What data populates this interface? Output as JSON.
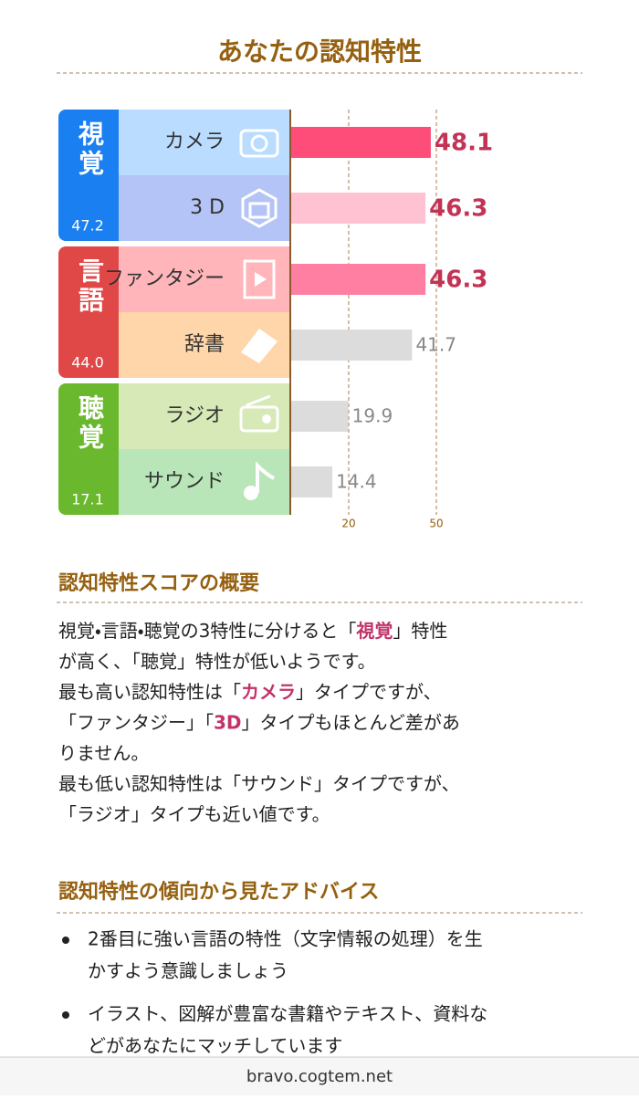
{
  "header": {
    "title": "あなたの認知特性"
  },
  "chart_data": {
    "type": "bar",
    "orientation": "horizontal",
    "xlim": [
      0,
      50
    ],
    "xticks": [
      20,
      50
    ],
    "groups": [
      {
        "name": "視覚",
        "value": 47.2,
        "color": "#1a7ff0",
        "categories": [
          "カメラ",
          "3 D"
        ],
        "values": [
          48.1,
          46.3
        ],
        "colors": [
          "#ff4d79",
          "#ffc2d2"
        ],
        "tile_colors": [
          "#b9dcff",
          "#b5c4f6"
        ],
        "value_label_colors": [
          "#c23355",
          "#c23355"
        ]
      },
      {
        "name": "言語",
        "value": 44.0,
        "value_label": "44.0",
        "color": "#e04848",
        "categories": [
          "ファンタジー",
          "辞書"
        ],
        "values": [
          46.3,
          41.7
        ],
        "colors": [
          "#ff7fa2",
          "#dcdcdc"
        ],
        "tile_colors": [
          "#ffb5ba",
          "#ffd5aa"
        ],
        "value_label_colors": [
          "#c23355",
          "#888888"
        ]
      },
      {
        "name": "聴覚",
        "value": 17.1,
        "color": "#6ab82e",
        "categories": [
          "ラジオ",
          "サウンド"
        ],
        "values": [
          19.9,
          14.4
        ],
        "colors": [
          "#dcdcdc",
          "#dcdcdc"
        ],
        "tile_colors": [
          "#d6e9b6",
          "#b9e6b9"
        ],
        "value_label_colors": [
          "#888888",
          "#888888"
        ]
      }
    ]
  },
  "summary": {
    "heading": "認知特性スコアの概要",
    "emphasis_color": "#c2336a",
    "lines": [
      [
        "視覚・言語・聴覚の3特性に分けると「",
        {
          "text": "視覚",
          "emphasis": true
        },
        "」特性"
      ],
      [
        "が高く、「聴覚」特性が低いようです。"
      ],
      [
        "最も高い認知特性は「",
        {
          "text": "カメラ",
          "emphasis": true
        },
        "」タイプですが、"
      ],
      [
        "「ファンタジー」「",
        {
          "text": "3D",
          "emphasis": true
        },
        "」タイプもほとんど差があ"
      ],
      [
        "りません。"
      ],
      [
        "最も低い認知特性は「サウンド」タイプですが、"
      ],
      [
        "「ラジオ」タイプも近い値です。"
      ]
    ]
  },
  "advice": {
    "heading": "認知特性の傾向から見たアドバイス",
    "items": [
      [
        "2番目に強い言語の特性（文字情報の処理）を生",
        "かすよう意識しましょう"
      ],
      [
        "イラスト、図解が豊富な書籍やテキスト、資料な",
        "どがあなたにマッチしています"
      ]
    ]
  },
  "footer": {
    "url": "bravo.cogtem.net"
  }
}
